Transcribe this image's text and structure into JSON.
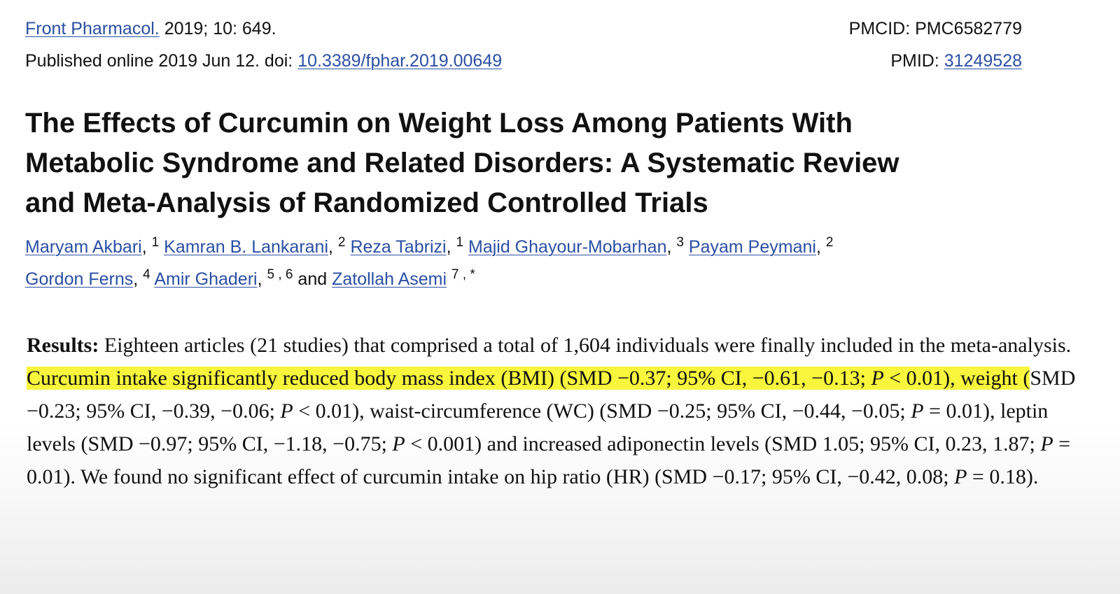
{
  "header": {
    "journal": "Front Pharmacol.",
    "citation": " 2019; 10: 649.",
    "published_prefix": "Published online 2019 Jun 12. doi: ",
    "doi": "10.3389/fphar.2019.00649",
    "pmcid": "PMCID: PMC6582779",
    "pmid_label": "PMID: ",
    "pmid": "31249528"
  },
  "title": {
    "line1": "The Effects of Curcumin on Weight Loss Among Patients With",
    "line2": "Metabolic Syndrome and Related Disorders: A Systematic Review",
    "line3": "and Meta-Analysis of Randomized Controlled Trials"
  },
  "authors": [
    {
      "name": "Maryam Akbari",
      "sup": "1"
    },
    {
      "name": "Kamran B. Lankarani",
      "sup": "2"
    },
    {
      "name": "Reza Tabrizi",
      "sup": "1"
    },
    {
      "name": "Majid Ghayour-Mobarhan",
      "sup": "3"
    },
    {
      "name": "Payam Peymani",
      "sup": "2"
    },
    {
      "name": "Gordon Ferns",
      "sup": "4"
    },
    {
      "name": "Amir Ghaderi",
      "sup": "5 , 6"
    },
    {
      "name": "Zatollah Asemi",
      "sup": "7 , *"
    }
  ],
  "authors_and": "and",
  "results": {
    "label": "Results:",
    "p1": " Eighteen articles (21 studies) that comprised a total of 1,604 individuals were finally included in the meta-analysis. ",
    "h1": "Curcumin intake significantly reduced body mass index (BMI) (SMD −0.37; 95% CI, −0.61, −0.13; ",
    "h1p": "P",
    "h2": " < 0.01), weight (",
    "p2": "SMD −0.23; 95% CI, −0.39, −0.06; ",
    "p2p": "P",
    "p3": " < 0.01), waist-circumference (WC) (SMD −0.25; 95% CI, −0.44, −0.05; ",
    "p3p": "P",
    "p4": " = 0.01), leptin levels (SMD −0.97; 95% CI, −1.18, −0.75; ",
    "p4p": "P",
    "p5": " < 0.001) and increased adiponectin levels (SMD 1.05; 95% CI, 0.23, 1.87; ",
    "p5p": "P",
    "p6": " = 0.01). We found no significant effect of curcumin intake on hip ratio (HR) (SMD −0.17; 95% CI, −0.42, 0.08; ",
    "p6p": "P",
    "p7": " = 0.18)."
  },
  "colors": {
    "link": "#2b4fa3",
    "highlight": "#f7f53c",
    "text": "#111111"
  }
}
